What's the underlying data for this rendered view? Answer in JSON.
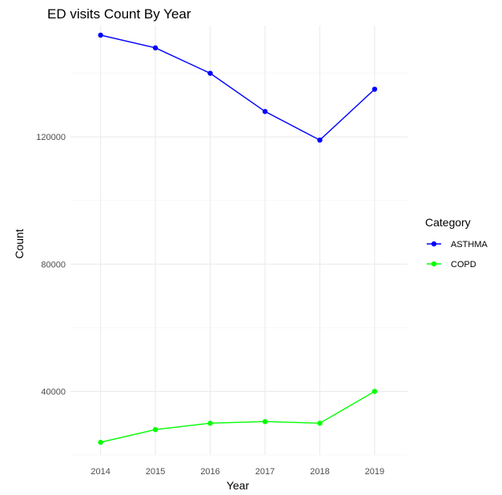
{
  "chart_data": {
    "type": "line",
    "title": "ED visits Count By Year",
    "xlabel": "Year",
    "ylabel": "Count",
    "x": [
      2014,
      2015,
      2016,
      2017,
      2018,
      2019
    ],
    "x_ticks": [
      "2014",
      "2015",
      "2016",
      "2017",
      "2018",
      "2019"
    ],
    "y_ticks": [
      "40000",
      "80000",
      "120000"
    ],
    "y_tick_values": [
      40000,
      80000,
      120000
    ],
    "xlim": [
      2013.45,
      2019.6
    ],
    "ylim": [
      20000,
      155000
    ],
    "grid": true,
    "legend": {
      "title": "Category",
      "placement": "right"
    },
    "series": [
      {
        "name": "ASTHMA",
        "color": "#0000ff",
        "values": [
          152000,
          148000,
          140000,
          128000,
          119000,
          135000
        ]
      },
      {
        "name": "COPD",
        "color": "#00ff00",
        "values": [
          24000,
          28000,
          30000,
          30500,
          30000,
          40000
        ]
      }
    ]
  }
}
